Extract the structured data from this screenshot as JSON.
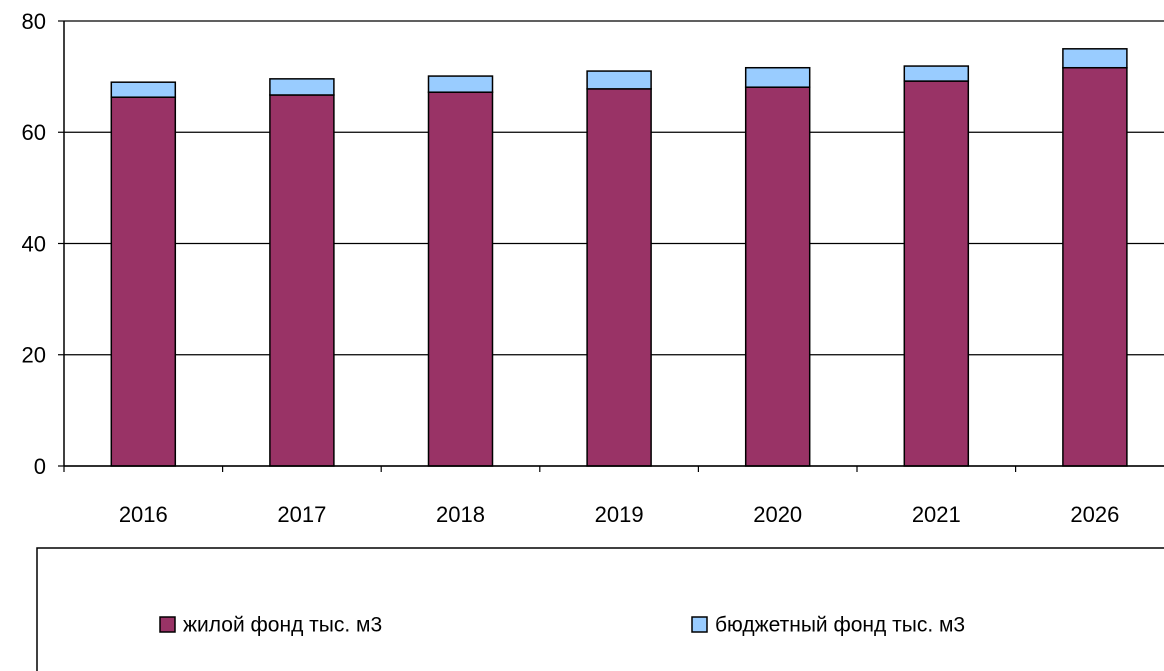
{
  "chart_data": {
    "type": "bar",
    "stacked": true,
    "categories": [
      "2016",
      "2017",
      "2018",
      "2019",
      "2020",
      "2021",
      "2026"
    ],
    "series": [
      {
        "name": "жилой фонд тыс. м3",
        "color": "#993366",
        "values": [
          66.3,
          66.7,
          67.2,
          67.8,
          68.1,
          69.2,
          71.6
        ]
      },
      {
        "name": "бюджетный фонд тыс. м3",
        "color": "#99ccff",
        "values": [
          2.7,
          2.9,
          2.9,
          3.2,
          3.5,
          2.7,
          3.4
        ]
      }
    ],
    "ylim": [
      0,
      80
    ],
    "yticks": [
      0,
      20,
      40,
      60,
      80
    ],
    "grid": true,
    "legend": "bottom"
  }
}
